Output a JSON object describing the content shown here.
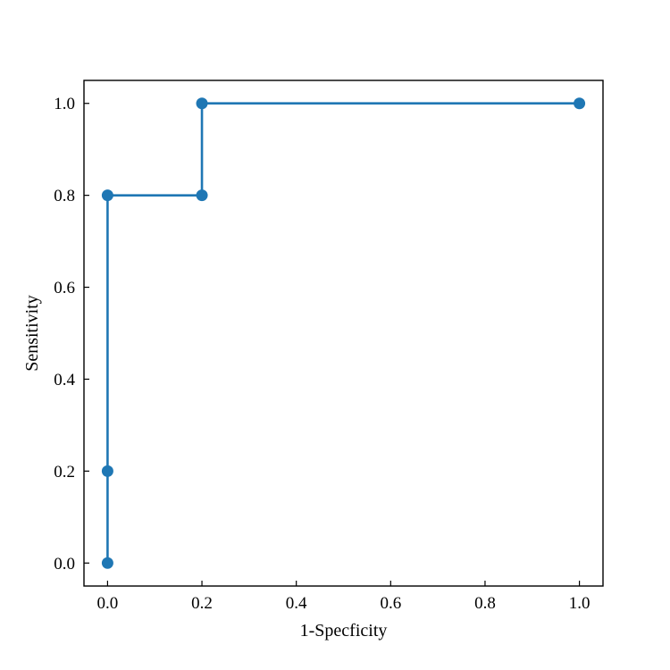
{
  "chart_data": {
    "type": "line",
    "title": "",
    "xlabel": "1-Specficity",
    "ylabel": "Sensitivity",
    "xlim": [
      -0.05,
      1.05
    ],
    "ylim": [
      -0.05,
      1.05
    ],
    "xticks": [
      0.0,
      0.2,
      0.4,
      0.6,
      0.8,
      1.0
    ],
    "yticks": [
      0.0,
      0.2,
      0.4,
      0.6,
      0.8,
      1.0
    ],
    "xtick_labels": [
      "0.0",
      "0.2",
      "0.4",
      "0.6",
      "0.8",
      "1.0"
    ],
    "ytick_labels": [
      "0.0",
      "0.2",
      "0.4",
      "0.6",
      "0.8",
      "1.0"
    ],
    "grid": false,
    "legend": "none",
    "series": [
      {
        "color": "#1f77b4",
        "marker": "circle",
        "x": [
          0.0,
          0.0,
          0.0,
          0.2,
          0.2,
          1.0
        ],
        "y": [
          0.0,
          0.2,
          0.8,
          0.8,
          1.0,
          1.0
        ]
      }
    ]
  }
}
